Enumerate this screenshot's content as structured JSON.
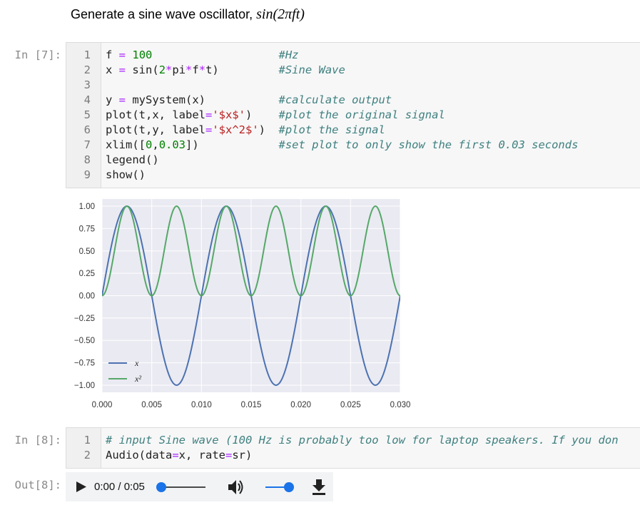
{
  "markdown": {
    "text": "Generate a sine wave oscillator, ",
    "math": "sin(2πft)"
  },
  "cell7": {
    "prompt": "In [7]:",
    "lines": [
      {
        "n": "1",
        "code": "f = 100",
        "comment": "#Hz"
      },
      {
        "n": "2",
        "code": "x = sin(2*pi*f*t)",
        "comment": "#Sine Wave"
      },
      {
        "n": "3",
        "code": "",
        "comment": ""
      },
      {
        "n": "4",
        "code": "y = mySystem(x)",
        "comment": "#calculate output"
      },
      {
        "n": "5",
        "code": "plot(t,x, label='$x$')",
        "comment": "#plot the original signal"
      },
      {
        "n": "6",
        "code": "plot(t,y, label='$x^2$')",
        "comment": "#plot the signal"
      },
      {
        "n": "7",
        "code": "xlim([0,0.03])",
        "comment": "#set plot to only show the first 0.03 seconds"
      },
      {
        "n": "8",
        "code": "legend()",
        "comment": ""
      },
      {
        "n": "9",
        "code": "show()",
        "comment": ""
      }
    ]
  },
  "chart_data": {
    "type": "line",
    "title": "",
    "xlabel": "",
    "ylabel": "",
    "xlim": [
      0,
      0.03
    ],
    "ylim": [
      -1.08,
      1.08
    ],
    "x_ticks": [
      "0.000",
      "0.005",
      "0.010",
      "0.015",
      "0.020",
      "0.025",
      "0.030"
    ],
    "y_ticks": [
      "1.00",
      "0.75",
      "0.50",
      "0.25",
      "0.00",
      "−0.25",
      "−0.50",
      "−0.75",
      "−1.00"
    ],
    "grid": true,
    "legend": "lower-left",
    "frequency_hz": 100,
    "series": [
      {
        "name": "x",
        "formula": "sin(2*pi*100*t)",
        "color": "#4c72b0",
        "x": [
          0,
          0.0025,
          0.005,
          0.0075,
          0.01,
          0.0125,
          0.015,
          0.0175,
          0.02,
          0.0225,
          0.025,
          0.0275,
          0.03
        ],
        "y": [
          0,
          1,
          0,
          -1,
          0,
          1,
          0,
          -1,
          0,
          1,
          0,
          -1,
          0
        ]
      },
      {
        "name": "x²",
        "formula": "sin(2*pi*100*t)^2",
        "color": "#55a868",
        "x": [
          0,
          0.00125,
          0.0025,
          0.00375,
          0.005,
          0.00625,
          0.0075,
          0.00875,
          0.01,
          0.01125,
          0.0125,
          0.01375,
          0.015,
          0.01625,
          0.0175,
          0.01875,
          0.02,
          0.02125,
          0.0225,
          0.02375,
          0.025,
          0.02625,
          0.0275,
          0.02875,
          0.03
        ],
        "y": [
          0,
          0.5,
          1,
          0.5,
          0,
          0.5,
          1,
          0.5,
          0,
          0.5,
          1,
          0.5,
          0,
          0.5,
          1,
          0.5,
          0,
          0.5,
          1,
          0.5,
          0,
          0.5,
          1,
          0.5,
          0
        ]
      }
    ]
  },
  "cell8": {
    "prompt": "In [8]:",
    "lines": [
      {
        "n": "1",
        "code": "",
        "comment": "# input Sine wave (100 Hz is probably too low for laptop speakers. If you don"
      },
      {
        "n": "2",
        "code": "Audio(data=x, rate=sr)",
        "comment": ""
      }
    ]
  },
  "out8": {
    "prompt": "Out[8]:",
    "time": "0:00 / 0:05",
    "progress": 0,
    "volume": 1,
    "icons": [
      "play-icon",
      "volume-icon",
      "download-icon"
    ]
  }
}
